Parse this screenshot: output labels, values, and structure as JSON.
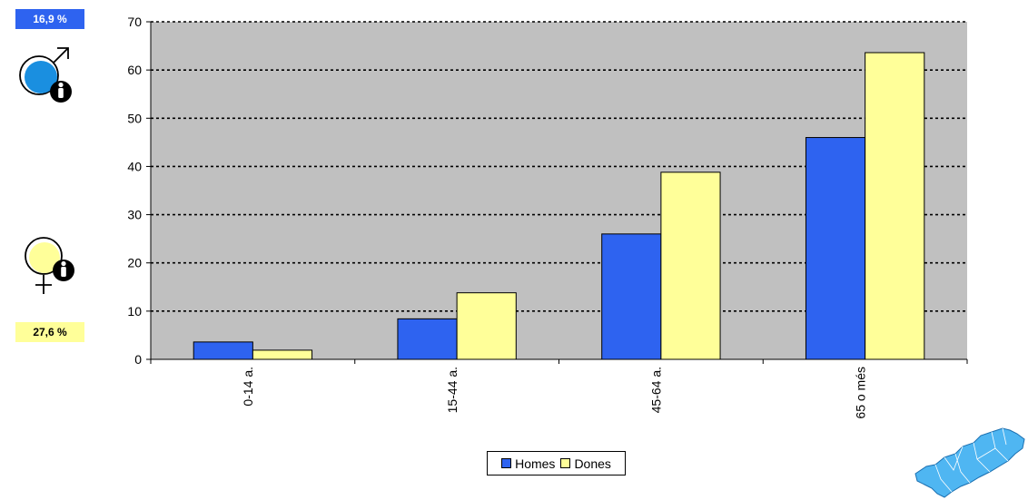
{
  "badges": {
    "men": "16,9 %",
    "women": "27,6 %"
  },
  "icons": {
    "men": "male-symbol-person-icon",
    "women": "female-symbol-person-icon",
    "map": "region-map-icon"
  },
  "colors": {
    "homes": "#2e63f0",
    "dones": "#ffff99",
    "plot_bg": "#c0c0c0"
  },
  "chart_data": {
    "type": "bar",
    "categories": [
      "0-14 a.",
      "15-44 a.",
      "45-64 a.",
      "65 o més"
    ],
    "series": [
      {
        "name": "Homes",
        "values": [
          3.6,
          8.4,
          26.0,
          46.0
        ]
      },
      {
        "name": "Dones",
        "values": [
          1.9,
          13.8,
          38.8,
          63.6
        ]
      }
    ],
    "y_ticks": [
      0,
      10,
      20,
      30,
      40,
      50,
      60,
      70
    ],
    "ylim": [
      0,
      70
    ],
    "grid": true,
    "legend_position": "bottom"
  }
}
